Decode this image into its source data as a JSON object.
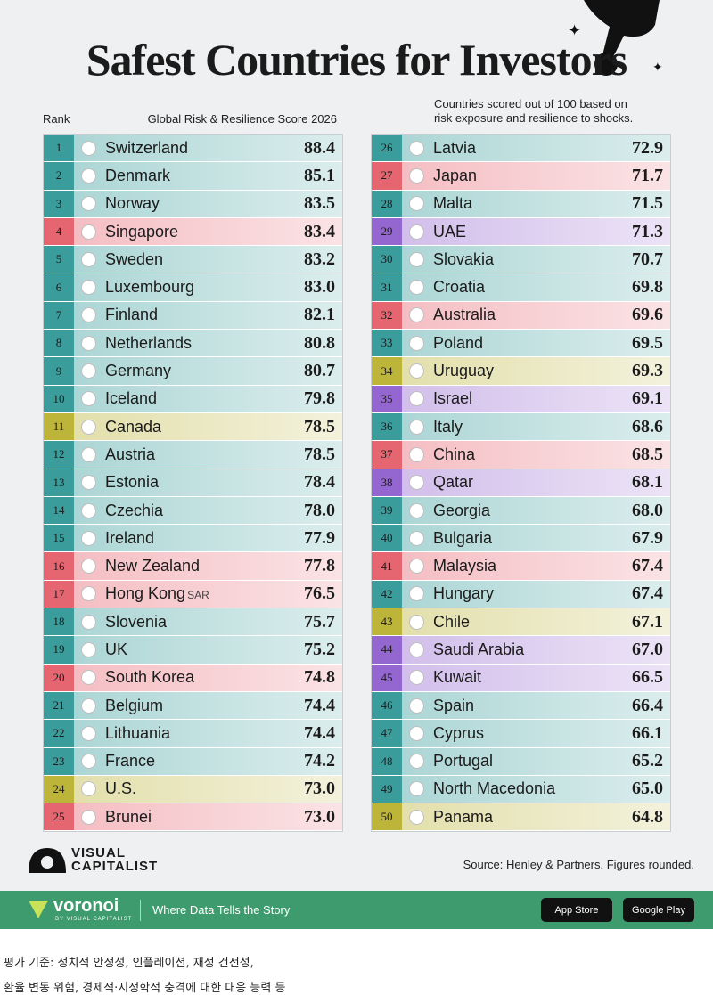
{
  "header": {
    "title": "Safest Countries for Investors",
    "subtitle": [
      "Countries scored out of 100 based on",
      "risk exposure and resilience to shocks."
    ],
    "rank_label": "Rank",
    "score_label": "Global Risk & Resilience Score 2026"
  },
  "rows": [
    {
      "rank": 1,
      "country": "Switzerland",
      "score": "88.4",
      "color": "#3a9d9c"
    },
    {
      "rank": 2,
      "country": "Denmark",
      "score": "85.1",
      "color": "#3a9d9c"
    },
    {
      "rank": 3,
      "country": "Norway",
      "score": "83.5",
      "color": "#3a9d9c"
    },
    {
      "rank": 4,
      "country": "Singapore",
      "score": "83.4",
      "color": "#e56571"
    },
    {
      "rank": 5,
      "country": "Sweden",
      "score": "83.2",
      "color": "#3a9d9c"
    },
    {
      "rank": 6,
      "country": "Luxembourg",
      "score": "83.0",
      "color": "#3a9d9c"
    },
    {
      "rank": 7,
      "country": "Finland",
      "score": "82.1",
      "color": "#3a9d9c"
    },
    {
      "rank": 8,
      "country": "Netherlands",
      "score": "80.8",
      "color": "#3a9d9c"
    },
    {
      "rank": 9,
      "country": "Germany",
      "score": "80.7",
      "color": "#3a9d9c"
    },
    {
      "rank": 10,
      "country": "Iceland",
      "score": "79.8",
      "color": "#3a9d9c"
    },
    {
      "rank": 11,
      "country": "Canada",
      "score": "78.5",
      "color": "#bdb43a"
    },
    {
      "rank": 12,
      "country": "Austria",
      "score": "78.5",
      "color": "#3a9d9c"
    },
    {
      "rank": 13,
      "country": "Estonia",
      "score": "78.4",
      "color": "#3a9d9c"
    },
    {
      "rank": 14,
      "country": "Czechia",
      "score": "78.0",
      "color": "#3a9d9c"
    },
    {
      "rank": 15,
      "country": "Ireland",
      "score": "77.9",
      "color": "#3a9d9c"
    },
    {
      "rank": 16,
      "country": "New Zealand",
      "score": "77.8",
      "color": "#e56571"
    },
    {
      "rank": 17,
      "country": "Hong Kong",
      "suffix": "SAR",
      "score": "76.5",
      "color": "#e56571"
    },
    {
      "rank": 18,
      "country": "Slovenia",
      "score": "75.7",
      "color": "#3a9d9c"
    },
    {
      "rank": 19,
      "country": "UK",
      "score": "75.2",
      "color": "#3a9d9c"
    },
    {
      "rank": 20,
      "country": "South Korea",
      "score": "74.8",
      "color": "#e56571"
    },
    {
      "rank": 21,
      "country": "Belgium",
      "score": "74.4",
      "color": "#3a9d9c"
    },
    {
      "rank": 22,
      "country": "Lithuania",
      "score": "74.4",
      "color": "#3a9d9c"
    },
    {
      "rank": 23,
      "country": "France",
      "score": "74.2",
      "color": "#3a9d9c"
    },
    {
      "rank": 24,
      "country": "U.S.",
      "score": "73.0",
      "color": "#bdb43a"
    },
    {
      "rank": 25,
      "country": "Brunei",
      "score": "73.0",
      "color": "#e56571"
    },
    {
      "rank": 26,
      "country": "Latvia",
      "score": "72.9",
      "color": "#3a9d9c"
    },
    {
      "rank": 27,
      "country": "Japan",
      "score": "71.7",
      "color": "#e56571"
    },
    {
      "rank": 28,
      "country": "Malta",
      "score": "71.5",
      "color": "#3a9d9c"
    },
    {
      "rank": 29,
      "country": "UAE",
      "score": "71.3",
      "color": "#9466cf"
    },
    {
      "rank": 30,
      "country": "Slovakia",
      "score": "70.7",
      "color": "#3a9d9c"
    },
    {
      "rank": 31,
      "country": "Croatia",
      "score": "69.8",
      "color": "#3a9d9c"
    },
    {
      "rank": 32,
      "country": "Australia",
      "score": "69.6",
      "color": "#e56571"
    },
    {
      "rank": 33,
      "country": "Poland",
      "score": "69.5",
      "color": "#3a9d9c"
    },
    {
      "rank": 34,
      "country": "Uruguay",
      "score": "69.3",
      "color": "#bdb43a"
    },
    {
      "rank": 35,
      "country": "Israel",
      "score": "69.1",
      "color": "#9466cf"
    },
    {
      "rank": 36,
      "country": "Italy",
      "score": "68.6",
      "color": "#3a9d9c"
    },
    {
      "rank": 37,
      "country": "China",
      "score": "68.5",
      "color": "#e56571"
    },
    {
      "rank": 38,
      "country": "Qatar",
      "score": "68.1",
      "color": "#9466cf"
    },
    {
      "rank": 39,
      "country": "Georgia",
      "score": "68.0",
      "color": "#3a9d9c"
    },
    {
      "rank": 40,
      "country": "Bulgaria",
      "score": "67.9",
      "color": "#3a9d9c"
    },
    {
      "rank": 41,
      "country": "Malaysia",
      "score": "67.4",
      "color": "#e56571"
    },
    {
      "rank": 42,
      "country": "Hungary",
      "score": "67.4",
      "color": "#3a9d9c"
    },
    {
      "rank": 43,
      "country": "Chile",
      "score": "67.1",
      "color": "#bdb43a"
    },
    {
      "rank": 44,
      "country": "Saudi Arabia",
      "score": "67.0",
      "color": "#9466cf"
    },
    {
      "rank": 45,
      "country": "Kuwait",
      "score": "66.5",
      "color": "#9466cf"
    },
    {
      "rank": 46,
      "country": "Spain",
      "score": "66.4",
      "color": "#3a9d9c"
    },
    {
      "rank": 47,
      "country": "Cyprus",
      "score": "66.1",
      "color": "#3a9d9c"
    },
    {
      "rank": 48,
      "country": "Portugal",
      "score": "65.2",
      "color": "#3a9d9c"
    },
    {
      "rank": 49,
      "country": "North Macedonia",
      "score": "65.0",
      "color": "#3a9d9c"
    },
    {
      "rank": 50,
      "country": "Panama",
      "score": "64.8",
      "color": "#bdb43a"
    }
  ],
  "source": "Source: Henley & Partners. Figures rounded.",
  "logo": [
    "VISUAL",
    "CAPITALIST"
  ],
  "footer": {
    "brand": "voronoi",
    "brand_sub": "BY VISUAL CAPITALIST",
    "tagline": "Where Data Tells the Story",
    "buttons": [
      "App Store",
      "Google Play"
    ]
  },
  "caption": [
    "평가 기준: 정치적 안정성, 인플레이션, 재정 건전성,",
    "환율 변동 위험, 경제적·지정학적 충격에 대한 대응 능력 등"
  ]
}
